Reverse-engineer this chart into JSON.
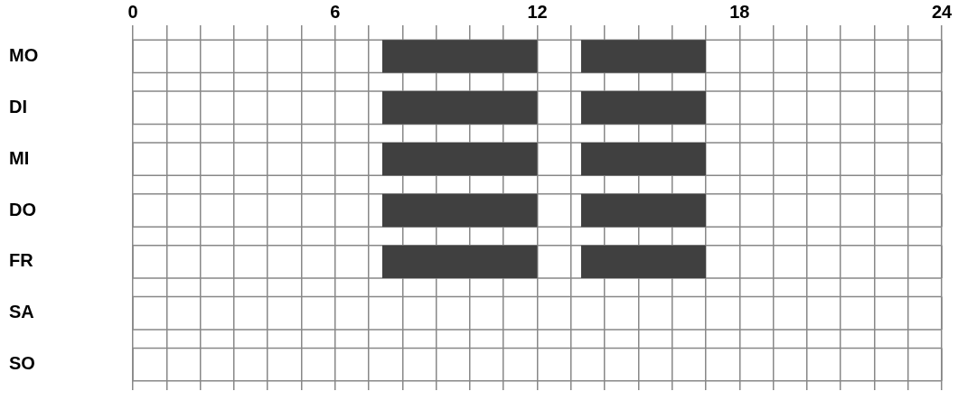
{
  "chart_data": {
    "type": "bar",
    "orientation": "horizontal",
    "categories": [
      "MO",
      "DI",
      "MI",
      "DO",
      "FR",
      "SA",
      "SO"
    ],
    "series": [
      {
        "color": "#404040",
        "base": [
          7.4,
          7.4,
          7.4,
          7.4,
          7.4,
          null,
          null
        ],
        "values": [
          4.6,
          4.6,
          4.6,
          4.6,
          4.6,
          null,
          null
        ]
      },
      {
        "color": "#404040",
        "base": [
          13.3,
          13.3,
          13.3,
          13.3,
          13.3,
          null,
          null
        ],
        "values": [
          3.7,
          3.7,
          3.7,
          3.7,
          3.7,
          null,
          null
        ]
      }
    ],
    "xlim": [
      0,
      24
    ],
    "xticks": [
      0,
      {
        "value": 1,
        "label": null
      },
      {
        "value": 2,
        "label": null
      },
      {
        "value": 3,
        "label": null
      },
      {
        "value": 4,
        "label": null
      },
      {
        "value": 5,
        "label": null
      },
      6,
      {
        "value": 7,
        "label": null
      },
      {
        "value": 8,
        "label": null
      },
      {
        "value": 9,
        "label": null
      },
      {
        "value": 10,
        "label": null
      },
      {
        "value": 11,
        "label": null
      },
      12,
      {
        "value": 13,
        "label": null
      },
      {
        "value": 14,
        "label": null
      },
      {
        "value": 15,
        "label": null
      },
      {
        "value": 16,
        "label": null
      },
      {
        "value": 17,
        "label": null
      },
      18,
      {
        "value": 19,
        "label": null
      },
      {
        "value": 20,
        "label": null
      },
      {
        "value": 21,
        "label": null
      },
      {
        "value": 22,
        "label": null
      },
      {
        "value": 23,
        "label": null
      },
      24
    ],
    "grid": "x",
    "legend": false
  }
}
